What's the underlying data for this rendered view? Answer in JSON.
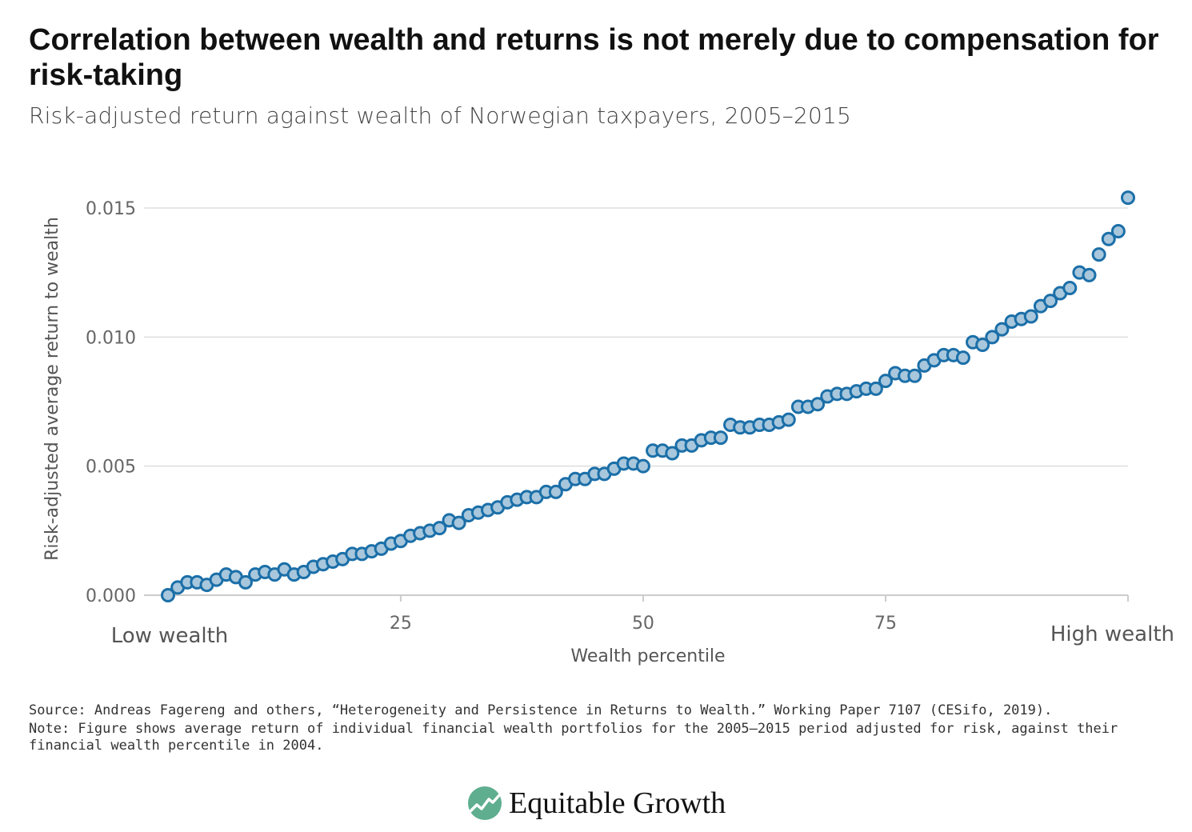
{
  "header": {
    "title": "Correlation between wealth and returns is not merely due to compensation for risk-taking",
    "subtitle": "Risk-adjusted return against wealth of Norwegian taxpayers, 2005–2015"
  },
  "colors": {
    "marker_fill": "#a8c7dc",
    "marker_stroke": "#1b6fa8",
    "grid": "#dddddd"
  },
  "chart_data": {
    "type": "scatter",
    "xlabel": "Wealth percentile",
    "ylabel": "Risk-adjusted average return to wealth",
    "xlim": [
      0,
      100
    ],
    "ylim": [
      0,
      0.015
    ],
    "y_ticks": [
      "0.000",
      "0.005",
      "0.010",
      "0.015"
    ],
    "x_ticks": [
      "25",
      "50",
      "75"
    ],
    "x_end_labels": [
      "Low wealth",
      "High wealth"
    ],
    "grid": "horizontal",
    "x": [
      1,
      2,
      3,
      4,
      5,
      6,
      7,
      8,
      9,
      10,
      11,
      12,
      13,
      14,
      15,
      16,
      17,
      18,
      19,
      20,
      21,
      22,
      23,
      24,
      25,
      26,
      27,
      28,
      29,
      30,
      31,
      32,
      33,
      34,
      35,
      36,
      37,
      38,
      39,
      40,
      41,
      42,
      43,
      44,
      45,
      46,
      47,
      48,
      49,
      50,
      51,
      52,
      53,
      54,
      55,
      56,
      57,
      58,
      59,
      60,
      61,
      62,
      63,
      64,
      65,
      66,
      67,
      68,
      69,
      70,
      71,
      72,
      73,
      74,
      75,
      76,
      77,
      78,
      79,
      80,
      81,
      82,
      83,
      84,
      85,
      86,
      87,
      88,
      89,
      90,
      91,
      92,
      93,
      94,
      95,
      96,
      97,
      98,
      99,
      100
    ],
    "values": [
      0.0,
      0.0003,
      0.0005,
      0.0005,
      0.0004,
      0.0006,
      0.0008,
      0.0007,
      0.0005,
      0.0008,
      0.0009,
      0.0008,
      0.001,
      0.0008,
      0.0009,
      0.0011,
      0.0012,
      0.0013,
      0.0014,
      0.0016,
      0.0016,
      0.0017,
      0.0018,
      0.002,
      0.0021,
      0.0023,
      0.0024,
      0.0025,
      0.0026,
      0.0029,
      0.0028,
      0.0031,
      0.0032,
      0.0033,
      0.0034,
      0.0036,
      0.0037,
      0.0038,
      0.0038,
      0.004,
      0.004,
      0.0043,
      0.0045,
      0.0045,
      0.0047,
      0.0047,
      0.0049,
      0.0051,
      0.0051,
      0.005,
      0.0056,
      0.0056,
      0.0055,
      0.0058,
      0.0058,
      0.006,
      0.0061,
      0.0061,
      0.0066,
      0.0065,
      0.0065,
      0.0066,
      0.0066,
      0.0067,
      0.0068,
      0.0073,
      0.0073,
      0.0074,
      0.0077,
      0.0078,
      0.0078,
      0.0079,
      0.008,
      0.008,
      0.0083,
      0.0086,
      0.0085,
      0.0085,
      0.0089,
      0.0091,
      0.0093,
      0.0093,
      0.0092,
      0.0098,
      0.0097,
      0.01,
      0.0103,
      0.0106,
      0.0107,
      0.0108,
      0.0112,
      0.0114,
      0.0117,
      0.0119,
      0.0125,
      0.0124,
      0.0132,
      0.0138,
      0.0141,
      0.0154
    ]
  },
  "footer": {
    "source": "Source: Andreas Fagereng and others, “Heterogeneity and Persistence in Returns to Wealth.” Working Paper 7107 (CESifo, 2019).",
    "note": "Note: Figure shows average return of individual financial wealth portfolios for the 2005—2015 period adjusted for risk, against their financial wealth percentile in 2004."
  },
  "logo": {
    "text": "Equitable Growth",
    "icon": "equitable-growth-logo-icon",
    "colors": [
      "#5fae8f",
      "#2f7a63"
    ]
  }
}
